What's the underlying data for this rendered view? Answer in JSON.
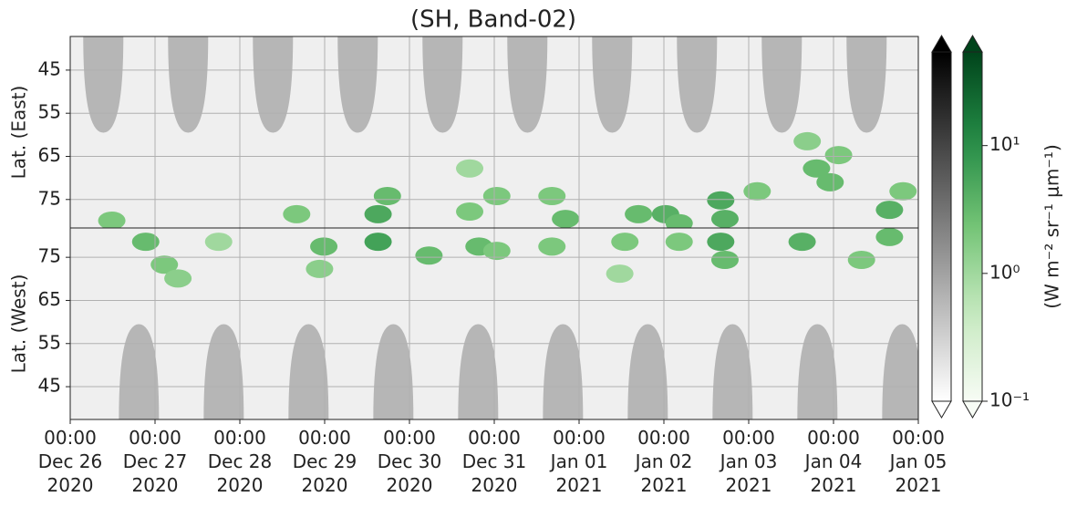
{
  "chart_data": {
    "type": "heatmap",
    "title": "(SH, Band-02)",
    "xlim": [
      0,
      10
    ],
    "xticks": [
      {
        "value": 0,
        "label": "00:00\nDec 26\n2020"
      },
      {
        "value": 1,
        "label": "00:00\nDec 27\n2020"
      },
      {
        "value": 2,
        "label": "00:00\nDec 28\n2020"
      },
      {
        "value": 3,
        "label": "00:00\nDec 29\n2020"
      },
      {
        "value": 4,
        "label": "00:00\nDec 30\n2020"
      },
      {
        "value": 5,
        "label": "00:00\nDec 31\n2020"
      },
      {
        "value": 6,
        "label": "00:00\nJan 01\n2021"
      },
      {
        "value": 7,
        "label": "00:00\nJan 02\n2021"
      },
      {
        "value": 8,
        "label": "00:00\nJan 03\n2021"
      },
      {
        "value": 9,
        "label": "00:00\nJan 04\n2021"
      },
      {
        "value": 10,
        "label": "00:00\nJan 05\n2021"
      }
    ],
    "grid": true,
    "colorbar": {
      "label": "(W m⁻² sr⁻¹ μm⁻¹)",
      "log_scale": true,
      "clim": [
        0.1,
        54
      ],
      "ticks": [
        {
          "value": 0.1,
          "label": "10⁻¹"
        },
        {
          "value": 1,
          "label": "10⁰"
        },
        {
          "value": 10,
          "label": "10¹"
        }
      ]
    },
    "panels": [
      {
        "ylabel": "Lat. (East)",
        "ylim": [
          37.2,
          81.6
        ],
        "yinvert": true,
        "yticks": [
          45,
          55,
          65,
          75
        ],
        "arches": {
          "x": [
            0.39,
            1.39,
            2.39,
            3.39,
            4.39,
            5.39,
            6.39,
            7.39,
            8.39,
            9.39
          ],
          "tip_lat": 59.5,
          "value": 0.6
        },
        "cells": {
          "x": [
            0.49,
            2.67,
            3.63,
            3.74,
            4.71,
            5.03,
            5.68,
            5.84,
            6.7,
            7.02,
            7.18,
            7.67,
            7.72,
            8.1,
            8.8,
            8.96,
            9.06,
            8.69,
            9.66,
            9.82,
            4.71
          ],
          "lat": [
            79.9,
            78.4,
            78.4,
            74.2,
            77.8,
            74.2,
            74.2,
            79.5,
            78.4,
            78.4,
            80.5,
            75.2,
            79.5,
            73.1,
            67.8,
            71.0,
            64.7,
            61.5,
            77.4,
            73.1,
            67.8
          ],
          "values": [
            2,
            2,
            5,
            3,
            2,
            2,
            2,
            3,
            3,
            4,
            3,
            5,
            4,
            2,
            3,
            3,
            2,
            1.5,
            4,
            2,
            1
          ]
        }
      },
      {
        "ylabel": "Lat. (West)",
        "ylim": [
          37.4,
          81.8
        ],
        "yinvert": false,
        "yticks": [
          45,
          55,
          65,
          75
        ],
        "arches": {
          "x": [
            0.81,
            1.81,
            2.81,
            3.81,
            4.81,
            5.81,
            6.81,
            7.81,
            8.81,
            9.81
          ],
          "tip_lat": 59.5,
          "value": 0.6
        },
        "cells": {
          "x": [
            0.89,
            1.11,
            1.27,
            1.75,
            2.99,
            2.94,
            3.63,
            4.23,
            4.82,
            5.03,
            5.68,
            6.54,
            7.18,
            7.67,
            7.72,
            8.63,
            9.33,
            9.66,
            6.48
          ],
          "lat": [
            78.6,
            73.3,
            70.1,
            78.6,
            77.5,
            72.3,
            78.6,
            75.4,
            77.5,
            76.5,
            77.5,
            78.6,
            78.6,
            78.6,
            74.4,
            78.6,
            74.4,
            79.7,
            71.2
          ],
          "values": [
            3,
            2,
            1.5,
            1,
            3,
            1.5,
            6,
            3,
            3,
            2,
            2,
            2,
            2,
            5,
            3,
            4,
            2,
            3,
            1
          ]
        }
      }
    ]
  }
}
